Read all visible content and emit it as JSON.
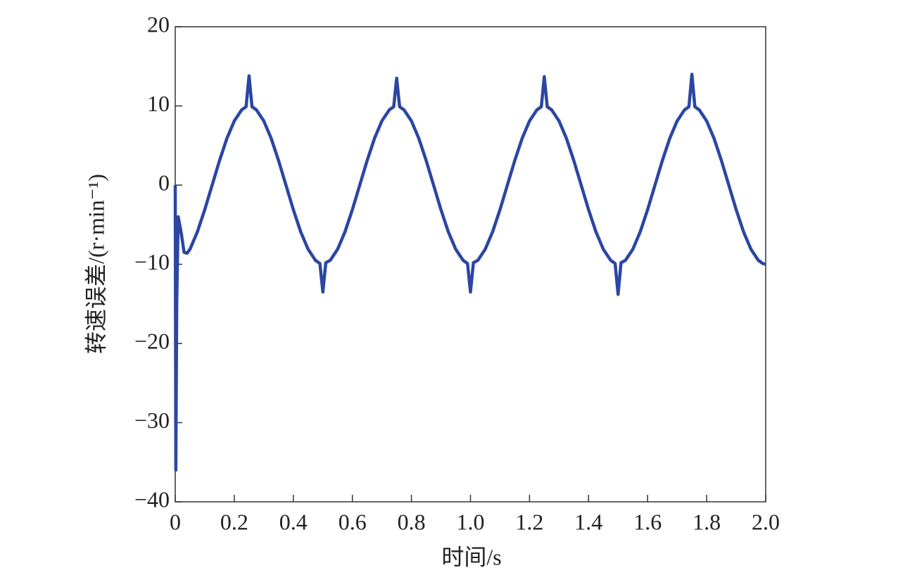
{
  "chart_data": {
    "type": "line",
    "xlabel": "时间/s",
    "ylabel": "转速误差/(r·min⁻¹)",
    "xlim": [
      0,
      2
    ],
    "ylim": [
      -40,
      20
    ],
    "xticks": [
      0,
      0.2,
      0.4,
      0.6,
      0.8,
      {
        "value": 1,
        "label": "1.0"
      },
      1.2,
      1.4,
      1.6,
      1.8,
      {
        "value": 2,
        "label": "2.0"
      }
    ],
    "yticks": [
      {
        "value": -40,
        "label": "−40"
      },
      {
        "value": -30,
        "label": "−30"
      },
      {
        "value": -20,
        "label": "−20"
      },
      {
        "value": -10,
        "label": "−10"
      },
      0,
      10,
      20
    ],
    "grid": false,
    "series": [
      {
        "color": "#2b46a3",
        "x": [
          0,
          0.002,
          0.005,
          0.01,
          0.02,
          0.03,
          0.04,
          0.05,
          0.075,
          0.1,
          0.125,
          0.15,
          0.175,
          0.2,
          0.225,
          0.24,
          0.25,
          0.26,
          0.275,
          0.3,
          0.325,
          0.35,
          0.375,
          0.4,
          0.425,
          0.45,
          0.475,
          0.49,
          0.5,
          0.51,
          0.525,
          0.55,
          0.575,
          0.6,
          0.625,
          0.65,
          0.675,
          0.7,
          0.725,
          0.74,
          0.75,
          0.76,
          0.775,
          0.8,
          0.825,
          0.85,
          0.875,
          0.9,
          0.925,
          0.95,
          0.975,
          0.99,
          1.0,
          1.01,
          1.025,
          1.05,
          1.075,
          1.1,
          1.125,
          1.15,
          1.175,
          1.2,
          1.225,
          1.24,
          1.25,
          1.26,
          1.275,
          1.3,
          1.325,
          1.35,
          1.375,
          1.4,
          1.425,
          1.45,
          1.475,
          1.49,
          1.5,
          1.51,
          1.525,
          1.55,
          1.575,
          1.6,
          1.625,
          1.65,
          1.675,
          1.7,
          1.725,
          1.74,
          1.75,
          1.76,
          1.775,
          1.8,
          1.825,
          1.85,
          1.875,
          1.9,
          1.925,
          1.95,
          1.975,
          1.99,
          2.0
        ],
        "values": [
          0,
          -36,
          -15,
          -4,
          -6,
          -8.5,
          -8.6,
          -8.1,
          -5.9,
          -3.1,
          0,
          3.1,
          5.9,
          8.1,
          9.5,
          9.9,
          13.8,
          9.9,
          9.5,
          8.1,
          5.9,
          3.1,
          0,
          -3.1,
          -5.9,
          -8.1,
          -9.5,
          -9.9,
          -13.5,
          -9.8,
          -9.5,
          -8.1,
          -5.9,
          -3.1,
          0,
          3.1,
          5.9,
          8.1,
          9.5,
          9.9,
          13.5,
          9.9,
          9.5,
          8.1,
          5.9,
          3.1,
          0,
          -3.1,
          -5.9,
          -8.1,
          -9.5,
          -9.9,
          -13.5,
          -9.8,
          -9.5,
          -8.1,
          -5.9,
          -3.1,
          0,
          3.1,
          5.9,
          8.1,
          9.5,
          9.9,
          13.7,
          9.9,
          9.5,
          8.1,
          5.9,
          3.1,
          0,
          -3.1,
          -5.9,
          -8.1,
          -9.5,
          -9.9,
          -13.8,
          -9.8,
          -9.5,
          -8.1,
          -5.9,
          -3.1,
          0,
          3.1,
          5.9,
          8.1,
          9.5,
          9.9,
          14,
          9.9,
          9.5,
          8.1,
          5.9,
          3.1,
          0,
          -3.1,
          -5.9,
          -8.1,
          -9.5,
          -9.9,
          -10
        ]
      }
    ]
  }
}
